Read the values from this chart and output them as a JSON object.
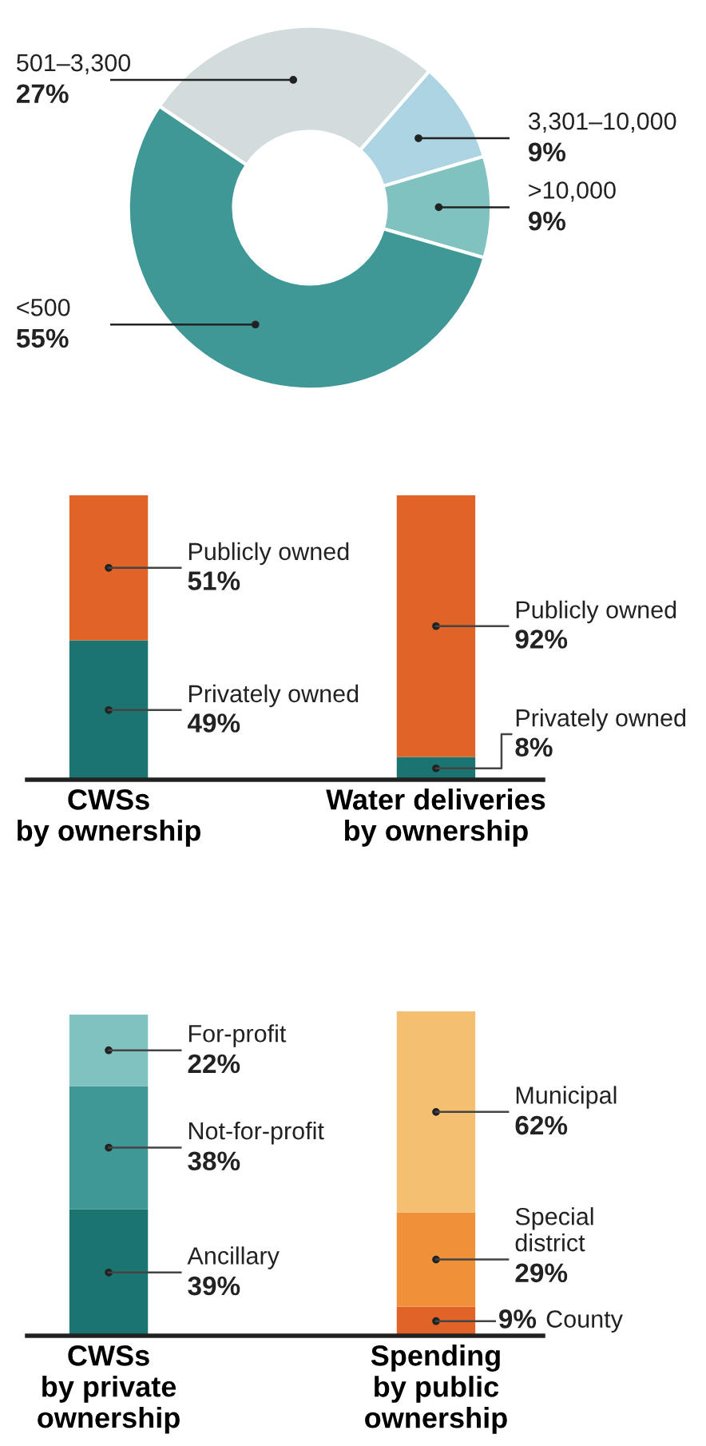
{
  "chart_data": [
    {
      "type": "donut",
      "categories": [
        "501–3,300",
        "3,301–10,000",
        ">10,000",
        "<500"
      ],
      "values": [
        27,
        9,
        9,
        55
      ],
      "colors": [
        "#d2dcdc",
        "#acd4e2",
        "#80c2c0",
        "#409896"
      ],
      "value_labels": [
        "27%",
        "9%",
        "9%",
        "55%"
      ],
      "legend": false
    },
    {
      "type": "bar",
      "stacked": true,
      "categories": [
        "CWSs\nby ownership",
        "Water deliveries\nby ownership"
      ],
      "ylim": [
        0,
        100
      ],
      "tick_labels": "x",
      "legend": false,
      "series": [
        {
          "name": "Privately owned",
          "color": "#1c7470",
          "values": [
            49,
            8
          ],
          "value_labels": [
            "49%",
            "8%"
          ]
        },
        {
          "name": "Publicly owned",
          "color": "#e06427",
          "values": [
            51,
            92
          ],
          "value_labels": [
            "51%",
            "92%"
          ]
        }
      ]
    },
    {
      "type": "bar",
      "stacked": true,
      "categories": [
        "CWSs\nby private\nownership",
        "Spending\nby public\nownership"
      ],
      "ylim": [
        0,
        100
      ],
      "tick_labels": "x",
      "legend": false,
      "series": [
        {
          "name": "Ancillary",
          "color": "#1c7470",
          "values": [
            39,
            null
          ],
          "value_labels": [
            "39%",
            null
          ]
        },
        {
          "name": "Not-for-profit",
          "color": "#409896",
          "values": [
            38,
            null
          ],
          "value_labels": [
            "38%",
            null
          ]
        },
        {
          "name": "For-profit",
          "color": "#80c2c0",
          "values": [
            22,
            null
          ],
          "value_labels": [
            "22%",
            null
          ]
        },
        {
          "name": "County",
          "color": "#e06427",
          "values": [
            null,
            9
          ],
          "value_labels": [
            null,
            "9%"
          ]
        },
        {
          "name": "Special\ndistrict",
          "color": "#f0913a",
          "values": [
            null,
            29
          ],
          "value_labels": [
            null,
            "29%"
          ]
        },
        {
          "name": "Municipal",
          "color": "#f4bf70",
          "values": [
            null,
            62
          ],
          "value_labels": [
            null,
            "62%"
          ]
        }
      ]
    }
  ]
}
